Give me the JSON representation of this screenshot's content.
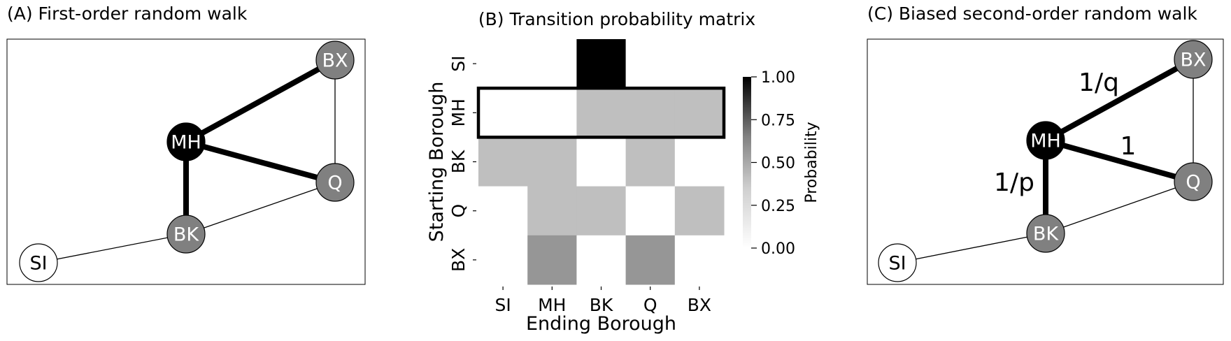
{
  "panel_a": {
    "title": "(A) First-order random walk",
    "nodes": [
      {
        "id": "SI",
        "label": "SI",
        "fill": "#ffffff",
        "text_color": "#000000"
      },
      {
        "id": "MH",
        "label": "MH",
        "fill": "#000000",
        "text_color": "#ffffff"
      },
      {
        "id": "BK",
        "label": "BK",
        "fill": "#808080",
        "text_color": "#ffffff"
      },
      {
        "id": "Q",
        "label": "Q",
        "fill": "#808080",
        "text_color": "#ffffff"
      },
      {
        "id": "BX",
        "label": "BX",
        "fill": "#808080",
        "text_color": "#ffffff"
      }
    ],
    "edges": [
      {
        "from": "SI",
        "to": "BK",
        "weight": "thin"
      },
      {
        "from": "BK",
        "to": "Q",
        "weight": "thin"
      },
      {
        "from": "Q",
        "to": "BX",
        "weight": "thin"
      },
      {
        "from": "MH",
        "to": "BK",
        "weight": "thick"
      },
      {
        "from": "MH",
        "to": "Q",
        "weight": "thick"
      },
      {
        "from": "MH",
        "to": "BX",
        "weight": "thick"
      }
    ]
  },
  "panel_b": {
    "title": "(B) Transition probability matrix",
    "chart_data": {
      "type": "heatmap",
      "rows": [
        "SI",
        "MH",
        "BK",
        "Q",
        "BX"
      ],
      "columns": [
        "SI",
        "MH",
        "BK",
        "Q",
        "BX"
      ],
      "values": [
        [
          0,
          0,
          1,
          0,
          0
        ],
        [
          0,
          0,
          0.333,
          0.333,
          0.333
        ],
        [
          0.333,
          0.333,
          0,
          0.333,
          0
        ],
        [
          0,
          0.333,
          0.333,
          0,
          0.333
        ],
        [
          0,
          0.5,
          0,
          0.5,
          0
        ]
      ],
      "highlighted_row": "MH",
      "xlabel": "Ending Borough",
      "ylabel": "Starting Borough",
      "colorbar": {
        "label": "Probability",
        "range": [
          0,
          1
        ],
        "ticks": [
          "0.00",
          "0.25",
          "0.50",
          "0.75",
          "1.00"
        ],
        "tick_values": [
          0,
          0.25,
          0.5,
          0.75,
          1
        ],
        "colormap": "greys"
      }
    }
  },
  "panel_c": {
    "title": "(C) Biased second-order random walk",
    "edge_labels": {
      "mh_bx": "1/q",
      "mh_q": "1",
      "mh_bk": "1/p"
    }
  }
}
